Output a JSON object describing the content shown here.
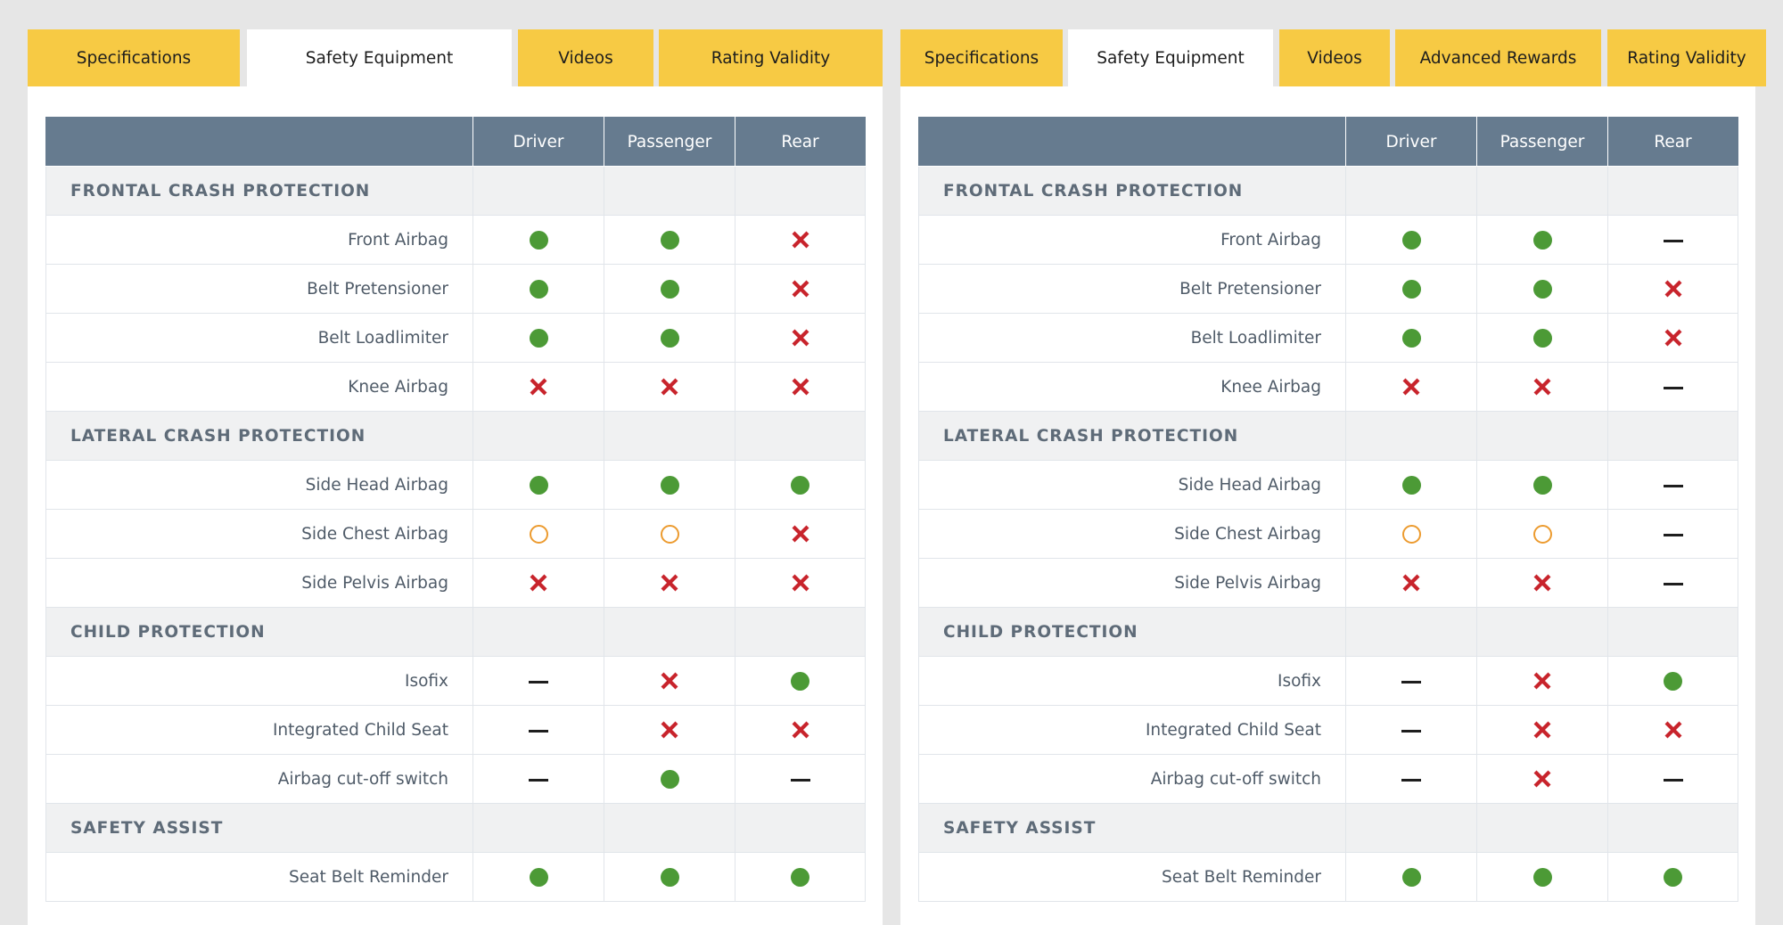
{
  "colors": {
    "tab_background": "#f7ca44",
    "header_background": "#667b8f",
    "section_background": "#f0f1f2",
    "yes": "#4c9a36",
    "partial": "#ec9b2f",
    "no": "#c8242c",
    "not_applicable": "#1e1e1e"
  },
  "icons": {
    "yes": "green-dot-icon",
    "partial": "orange-ring-icon",
    "no": "red-cross-icon",
    "na": "dash-icon"
  },
  "panels": [
    {
      "tabs": [
        {
          "label": "Specifications",
          "active": false
        },
        {
          "label": "Safety Equipment",
          "active": true
        },
        {
          "label": "Videos",
          "active": false
        },
        {
          "label": "Rating Validity",
          "active": false
        }
      ],
      "columns": [
        "Driver",
        "Passenger",
        "Rear"
      ],
      "sections": [
        {
          "title": "FRONTAL CRASH PROTECTION",
          "rows": [
            {
              "label": "Front Airbag",
              "values": [
                "yes",
                "yes",
                "no"
              ]
            },
            {
              "label": "Belt Pretensioner",
              "values": [
                "yes",
                "yes",
                "no"
              ]
            },
            {
              "label": "Belt Loadlimiter",
              "values": [
                "yes",
                "yes",
                "no"
              ]
            },
            {
              "label": "Knee Airbag",
              "values": [
                "no",
                "no",
                "no"
              ]
            }
          ]
        },
        {
          "title": "LATERAL CRASH PROTECTION",
          "rows": [
            {
              "label": "Side Head Airbag",
              "values": [
                "yes",
                "yes",
                "yes"
              ]
            },
            {
              "label": "Side Chest Airbag",
              "values": [
                "partial",
                "partial",
                "no"
              ]
            },
            {
              "label": "Side Pelvis Airbag",
              "values": [
                "no",
                "no",
                "no"
              ]
            }
          ]
        },
        {
          "title": "CHILD PROTECTION",
          "rows": [
            {
              "label": "Isofix",
              "values": [
                "na",
                "no",
                "yes"
              ]
            },
            {
              "label": "Integrated Child Seat",
              "values": [
                "na",
                "no",
                "no"
              ]
            },
            {
              "label": "Airbag cut-off switch",
              "values": [
                "na",
                "yes",
                "na"
              ]
            }
          ]
        },
        {
          "title": "SAFETY ASSIST",
          "rows": [
            {
              "label": "Seat Belt Reminder",
              "values": [
                "yes",
                "yes",
                "yes"
              ]
            }
          ]
        }
      ]
    },
    {
      "tabs": [
        {
          "label": "Specifications",
          "active": false
        },
        {
          "label": "Safety Equipment",
          "active": true
        },
        {
          "label": "Videos",
          "active": false
        },
        {
          "label": "Advanced Rewards",
          "active": false
        },
        {
          "label": "Rating Validity",
          "active": false
        }
      ],
      "columns": [
        "Driver",
        "Passenger",
        "Rear"
      ],
      "sections": [
        {
          "title": "FRONTAL CRASH PROTECTION",
          "rows": [
            {
              "label": "Front Airbag",
              "values": [
                "yes",
                "yes",
                "na"
              ]
            },
            {
              "label": "Belt Pretensioner",
              "values": [
                "yes",
                "yes",
                "no"
              ]
            },
            {
              "label": "Belt Loadlimiter",
              "values": [
                "yes",
                "yes",
                "no"
              ]
            },
            {
              "label": "Knee Airbag",
              "values": [
                "no",
                "no",
                "na"
              ]
            }
          ]
        },
        {
          "title": "LATERAL CRASH PROTECTION",
          "rows": [
            {
              "label": "Side Head Airbag",
              "values": [
                "yes",
                "yes",
                "na"
              ]
            },
            {
              "label": "Side Chest Airbag",
              "values": [
                "partial",
                "partial",
                "na"
              ]
            },
            {
              "label": "Side Pelvis Airbag",
              "values": [
                "no",
                "no",
                "na"
              ]
            }
          ]
        },
        {
          "title": "CHILD PROTECTION",
          "rows": [
            {
              "label": "Isofix",
              "values": [
                "na",
                "no",
                "yes"
              ]
            },
            {
              "label": "Integrated Child Seat",
              "values": [
                "na",
                "no",
                "no"
              ]
            },
            {
              "label": "Airbag cut-off switch",
              "values": [
                "na",
                "no",
                "na"
              ]
            }
          ]
        },
        {
          "title": "SAFETY ASSIST",
          "rows": [
            {
              "label": "Seat Belt Reminder",
              "values": [
                "yes",
                "yes",
                "yes"
              ]
            }
          ]
        }
      ]
    }
  ]
}
